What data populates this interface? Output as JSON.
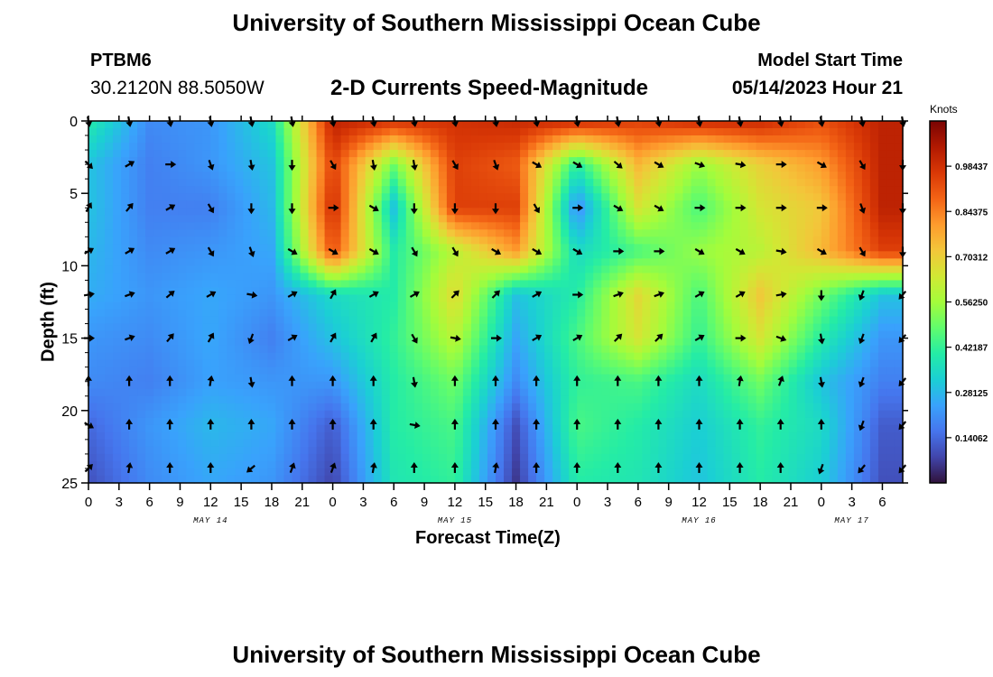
{
  "header": {
    "title": "University of Southern Mississippi Ocean Cube",
    "station": "PTBM6",
    "coords": "30.2120N  88.5050W",
    "subtitle": "2-D Currents Speed-Magnitude",
    "model_label": "Model Start Time",
    "model_time": "05/14/2023 Hour 21"
  },
  "footer": {
    "title": "University of Southern Mississippi Ocean Cube"
  },
  "colorbar": {
    "unit": "Knots",
    "ticks": [
      "0.14062",
      "0.28125",
      "0.42187",
      "0.56250",
      "0.70312",
      "0.84375",
      "0.98437"
    ],
    "tick_values": [
      0.140625,
      0.28125,
      0.421875,
      0.5625,
      0.703125,
      0.84375,
      0.984375
    ],
    "max": 1.125,
    "colors": [
      "#30123b",
      "#4145ab",
      "#4675ed",
      "#39a2fc",
      "#1bcfd4",
      "#24eca6",
      "#61fc6c",
      "#a4fc3b",
      "#d1e834",
      "#f3c63a",
      "#fe9b2d",
      "#f36315",
      "#d93806",
      "#b11901",
      "#7a0403"
    ]
  },
  "chart_data": {
    "type": "heatmap",
    "title": "2-D Currents Speed-Magnitude",
    "xlabel": "Forecast Time(Z)",
    "ylabel": "Depth (ft)",
    "ylim": [
      0,
      25
    ],
    "yticks": [
      "0",
      "5",
      "10",
      "15",
      "20",
      "25"
    ],
    "ytick_values": [
      0,
      5,
      10,
      15,
      20,
      25
    ],
    "xtick_labels": [
      "0",
      "3",
      "6",
      "9",
      "12",
      "15",
      "18",
      "21",
      "0",
      "3",
      "6",
      "9",
      "12",
      "15",
      "18",
      "21",
      "0",
      "3",
      "6",
      "9",
      "12",
      "15",
      "18",
      "21",
      "0",
      "3",
      "6"
    ],
    "date_labels": [
      {
        "label": "MAY 14",
        "tick": 4
      },
      {
        "label": "MAY 15",
        "tick": 12
      },
      {
        "label": "MAY 16",
        "tick": 20
      },
      {
        "label": "MAY 17",
        "tick": 25
      }
    ],
    "speed_grid_hours": [
      0,
      6,
      12,
      18,
      24,
      30,
      36,
      42,
      48,
      54,
      60,
      66,
      72,
      78
    ],
    "speed_grid_depths": [
      0,
      3,
      6,
      9,
      12,
      15,
      18,
      21,
      25
    ],
    "speed_knots": [
      [
        0.4,
        0.2,
        0.22,
        0.35,
        1.02,
        0.98,
        0.98,
        1.0,
        1.0,
        0.95,
        1.0,
        1.0,
        0.92,
        1.02
      ],
      [
        0.3,
        0.18,
        0.22,
        0.3,
        0.95,
        0.5,
        0.95,
        0.9,
        0.4,
        0.75,
        0.55,
        0.7,
        0.8,
        1.02
      ],
      [
        0.3,
        0.18,
        0.18,
        0.28,
        1.0,
        0.3,
        0.95,
        0.95,
        0.2,
        0.65,
        0.45,
        0.65,
        0.72,
        1.02
      ],
      [
        0.28,
        0.2,
        0.22,
        0.25,
        0.92,
        0.4,
        0.6,
        0.8,
        0.35,
        0.45,
        0.55,
        0.6,
        0.75,
        0.95
      ],
      [
        0.26,
        0.22,
        0.25,
        0.22,
        0.35,
        0.4,
        0.68,
        0.3,
        0.4,
        0.68,
        0.45,
        0.72,
        0.5,
        0.3
      ],
      [
        0.22,
        0.2,
        0.25,
        0.18,
        0.3,
        0.42,
        0.6,
        0.25,
        0.45,
        0.65,
        0.42,
        0.65,
        0.4,
        0.22
      ],
      [
        0.2,
        0.18,
        0.24,
        0.22,
        0.22,
        0.4,
        0.5,
        0.2,
        0.42,
        0.45,
        0.35,
        0.5,
        0.3,
        0.18
      ],
      [
        0.14,
        0.22,
        0.28,
        0.25,
        0.12,
        0.4,
        0.45,
        0.1,
        0.45,
        0.4,
        0.32,
        0.42,
        0.35,
        0.12
      ],
      [
        0.1,
        0.2,
        0.25,
        0.22,
        0.08,
        0.38,
        0.42,
        0.06,
        0.4,
        0.38,
        0.3,
        0.4,
        0.32,
        0.1
      ]
    ],
    "arrow_hours": [
      0,
      4,
      8,
      12,
      16,
      20,
      24,
      28,
      32,
      36,
      40,
      44,
      48,
      52,
      56,
      60,
      64,
      68,
      72,
      76,
      80
    ],
    "arrow_depths": [
      0,
      3,
      6,
      9,
      12,
      15,
      18,
      21,
      24
    ],
    "arrow_angles_deg": [
      [
        170,
        170,
        170,
        170,
        170,
        170,
        170,
        170,
        170,
        170,
        170,
        170,
        170,
        170,
        170,
        170,
        170,
        170,
        170,
        170,
        170
      ],
      [
        135,
        60,
        90,
        160,
        170,
        180,
        150,
        170,
        170,
        150,
        160,
        120,
        120,
        130,
        120,
        110,
        100,
        90,
        120,
        150,
        180
      ],
      [
        30,
        40,
        60,
        150,
        180,
        180,
        90,
        120,
        180,
        180,
        180,
        150,
        90,
        120,
        120,
        90,
        90,
        90,
        90,
        160,
        180
      ],
      [
        60,
        60,
        60,
        150,
        160,
        120,
        120,
        120,
        150,
        150,
        120,
        120,
        120,
        90,
        90,
        120,
        120,
        100,
        120,
        150,
        180
      ],
      [
        80,
        70,
        50,
        60,
        100,
        60,
        30,
        60,
        60,
        45,
        45,
        60,
        90,
        70,
        70,
        60,
        60,
        80,
        180,
        200,
        220
      ],
      [
        90,
        70,
        40,
        30,
        200,
        60,
        30,
        30,
        150,
        100,
        90,
        60,
        60,
        45,
        45,
        60,
        90,
        110,
        170,
        200,
        220
      ],
      [
        0,
        0,
        0,
        10,
        170,
        0,
        0,
        0,
        170,
        0,
        0,
        0,
        0,
        0,
        0,
        0,
        10,
        20,
        170,
        200,
        220
      ],
      [
        120,
        0,
        0,
        0,
        0,
        0,
        0,
        0,
        100,
        0,
        0,
        0,
        0,
        0,
        0,
        0,
        0,
        0,
        0,
        200,
        220
      ],
      [
        45,
        10,
        0,
        0,
        230,
        20,
        20,
        10,
        0,
        0,
        10,
        0,
        0,
        0,
        0,
        0,
        0,
        0,
        200,
        220,
        220
      ]
    ]
  }
}
